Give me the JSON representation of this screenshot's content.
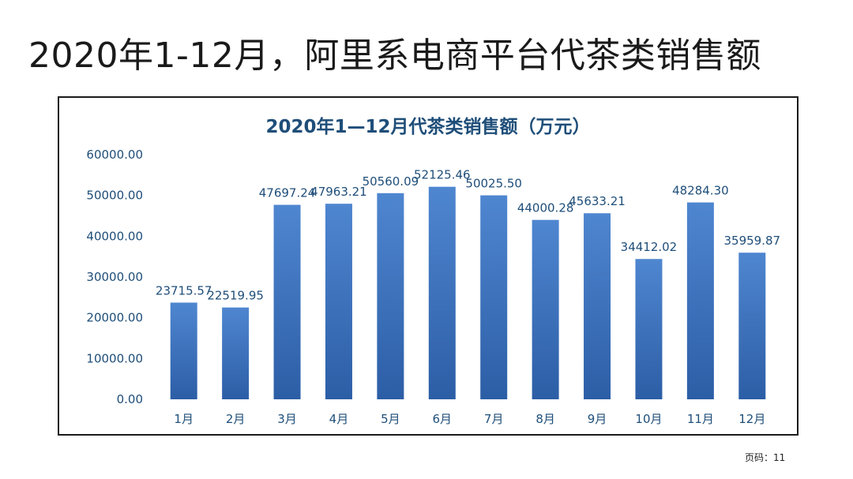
{
  "slide": {
    "title": "2020年1-12月，阿里系电商平台代茶类销售额",
    "page_label": "页码：11"
  },
  "colors": {
    "bar_top": "#4f86d0",
    "bar_bottom": "#2c5ea6",
    "text": "#1f4e79"
  },
  "chart_data": {
    "type": "bar",
    "title": "2020年1—12月代茶类销售额（万元）",
    "categories": [
      "1月",
      "2月",
      "3月",
      "4月",
      "5月",
      "6月",
      "7月",
      "8月",
      "9月",
      "10月",
      "11月",
      "12月"
    ],
    "values": [
      23715.57,
      22519.95,
      47697.24,
      47963.21,
      50560.09,
      52125.46,
      50025.5,
      44000.28,
      45633.21,
      34412.02,
      48284.3,
      35959.87
    ],
    "data_labels": [
      "23715.57",
      "22519.95",
      "47697.24",
      "47963.21",
      "50560.09",
      "52125.46",
      "50025.50",
      "44000.28",
      "45633.21",
      "34412.02",
      "48284.30",
      "35959.87"
    ],
    "y_ticks": [
      0,
      10000,
      20000,
      30000,
      40000,
      50000,
      60000
    ],
    "y_tick_labels": [
      "0.00",
      "10000.00",
      "20000.00",
      "30000.00",
      "40000.00",
      "50000.00",
      "60000.00"
    ],
    "ylim": [
      0,
      60000
    ],
    "xlabel": "",
    "ylabel": "",
    "grid": false,
    "legend": "none"
  }
}
